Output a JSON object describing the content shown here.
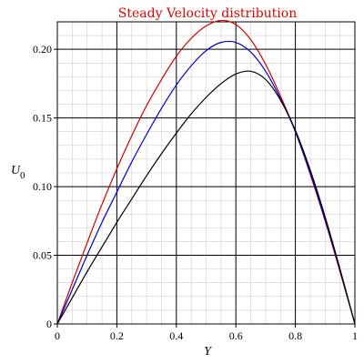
{
  "chart_data": {
    "type": "line",
    "title": "Steady Velocity distribution",
    "xlabel": "Y",
    "ylabel": "U",
    "ylabel_subscript": "0",
    "xlim": [
      0,
      1
    ],
    "ylim": [
      0,
      0.22
    ],
    "x_ticks": [
      0,
      0.2,
      0.4,
      0.6,
      0.8,
      1
    ],
    "x_tick_labels": [
      "0",
      "0.2",
      "0.4",
      "0.6",
      "0.8",
      "1"
    ],
    "y_ticks": [
      0,
      0.05,
      0.1,
      0.15,
      0.2
    ],
    "y_tick_labels": [
      "0",
      "0.05",
      "0.10",
      "0.15",
      "0.20"
    ],
    "grid": true,
    "title_color": "#e00000",
    "series": [
      {
        "color": "#cc0000",
        "x": [
          0,
          0.05,
          0.1,
          0.15,
          0.2,
          0.25,
          0.3,
          0.35,
          0.4,
          0.45,
          0.5,
          0.55,
          0.6,
          0.65,
          0.7,
          0.75,
          0.8,
          0.85,
          0.9,
          0.95,
          1
        ],
        "y": [
          0,
          0.03,
          0.059,
          0.087,
          0.113,
          0.137,
          0.159,
          0.178,
          0.195,
          0.208,
          0.217,
          0.221,
          0.218,
          0.207,
          0.189,
          0.166,
          0.14,
          0.109,
          0.075,
          0.038,
          0
        ]
      },
      {
        "color": "#0000cc",
        "x": [
          0,
          0.05,
          0.1,
          0.15,
          0.2,
          0.25,
          0.3,
          0.35,
          0.4,
          0.45,
          0.5,
          0.55,
          0.6,
          0.65,
          0.7,
          0.75,
          0.8,
          0.85,
          0.9,
          0.95,
          1
        ],
        "y": [
          0,
          0.025,
          0.05,
          0.074,
          0.096,
          0.118,
          0.138,
          0.157,
          0.174,
          0.188,
          0.199,
          0.205,
          0.205,
          0.198,
          0.184,
          0.164,
          0.14,
          0.11,
          0.076,
          0.039,
          0
        ]
      },
      {
        "color": "#000000",
        "x": [
          0,
          0.05,
          0.1,
          0.15,
          0.2,
          0.25,
          0.3,
          0.35,
          0.4,
          0.45,
          0.5,
          0.55,
          0.6,
          0.65,
          0.7,
          0.75,
          0.8,
          0.85,
          0.9,
          0.95,
          1
        ],
        "y": [
          0,
          0.019,
          0.038,
          0.056,
          0.074,
          0.091,
          0.108,
          0.124,
          0.139,
          0.153,
          0.165,
          0.175,
          0.182,
          0.184,
          0.178,
          0.163,
          0.141,
          0.112,
          0.078,
          0.04,
          0
        ]
      }
    ]
  }
}
